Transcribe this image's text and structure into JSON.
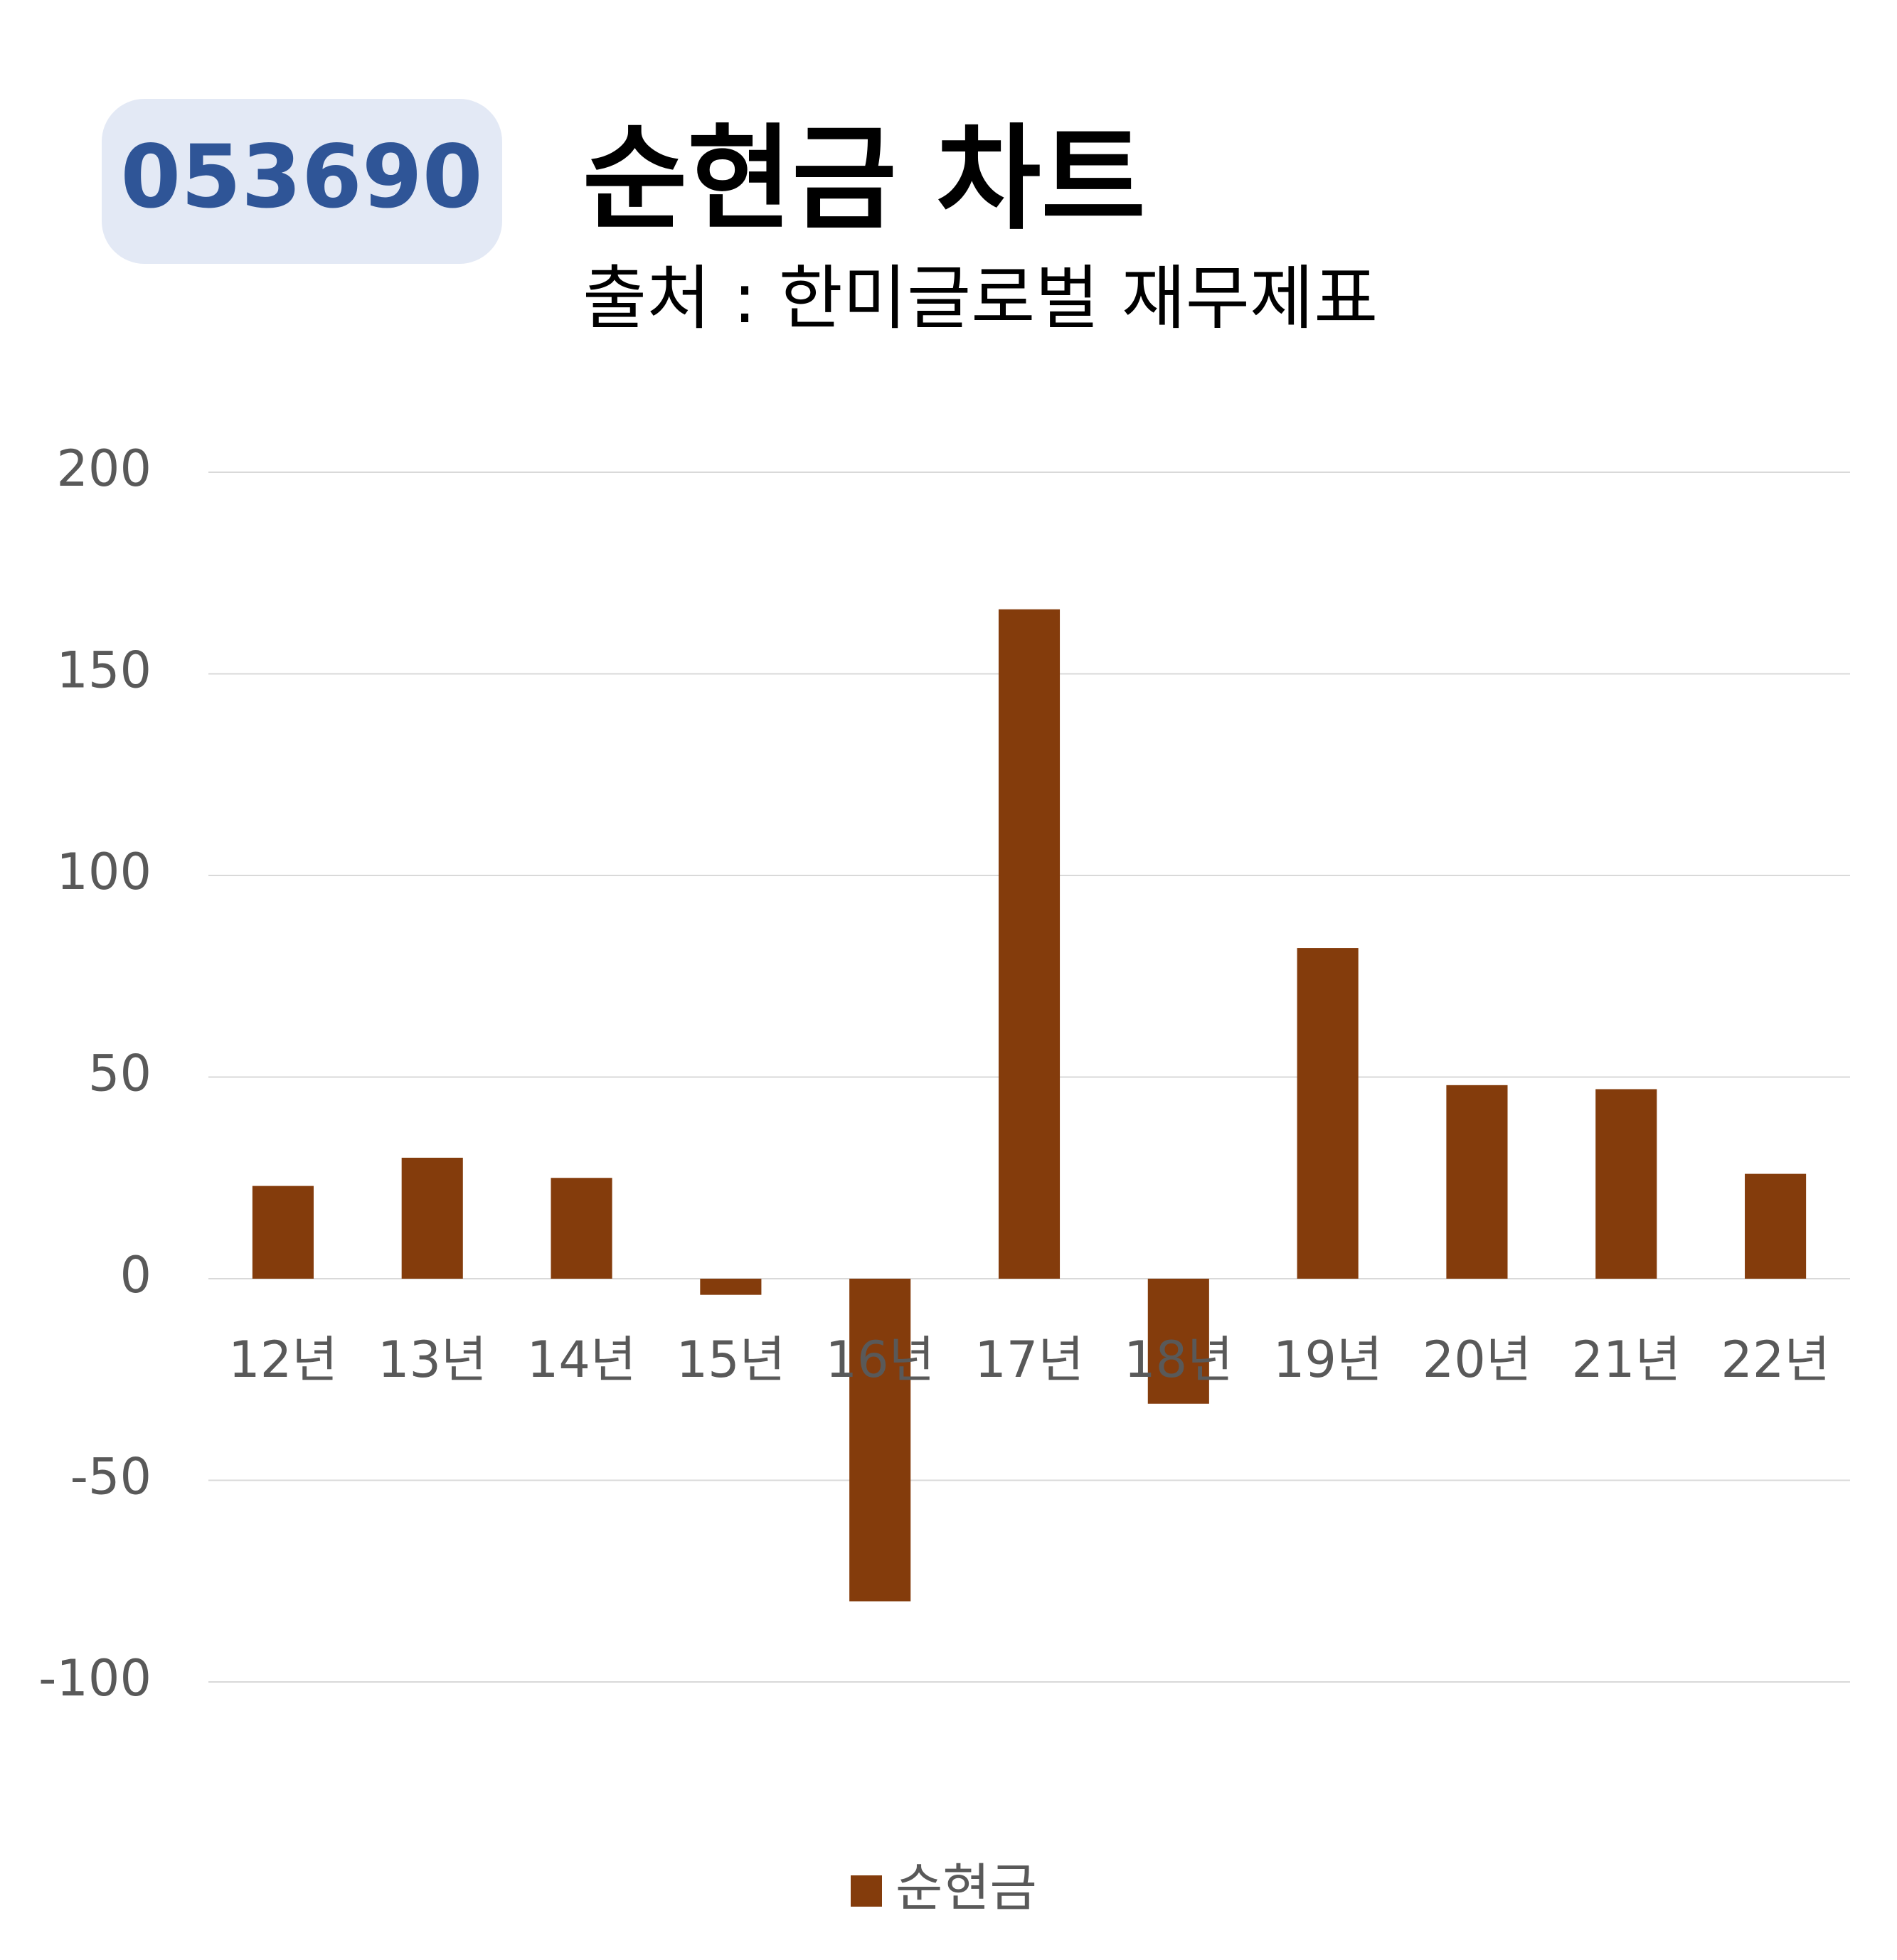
{
  "chart_data": {
    "type": "bar",
    "badge": "053690",
    "title": "순현금 차트",
    "subtitle": "출처 : 한미글로벌 재무제표",
    "categories": [
      "12년",
      "13년",
      "14년",
      "15년",
      "16년",
      "17년",
      "18년",
      "19년",
      "20년",
      "21년",
      "22년"
    ],
    "series": [
      {
        "name": "순현금",
        "color": "#843c0c",
        "values": [
          23,
          30,
          25,
          -4,
          -80,
          166,
          -31,
          82,
          48,
          47,
          26
        ]
      }
    ],
    "ylim": [
      -100,
      200
    ],
    "yticks": [
      -100,
      -50,
      0,
      50,
      100,
      150,
      200
    ],
    "grid": true,
    "legend": "bottom"
  }
}
